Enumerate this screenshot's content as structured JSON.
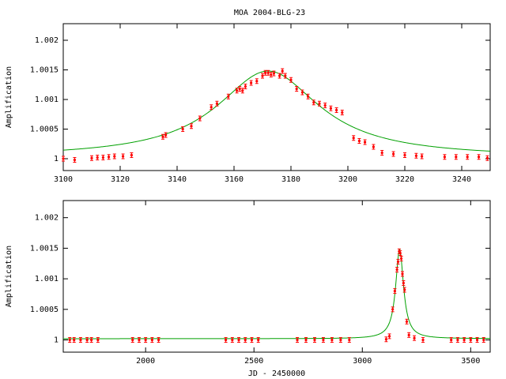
{
  "title": "MOA 2004-BLG-23",
  "colors": {
    "model": "#00a000",
    "points": "#ff0000",
    "axes": "#000000"
  },
  "chart_data": [
    {
      "type": "line",
      "title": "MOA 2004-BLG-23",
      "xlabel": "",
      "ylabel": "Amplification",
      "xlim": [
        3100,
        3250
      ],
      "ylim": [
        0.9998,
        1.00228
      ],
      "xticks": [
        3100,
        3120,
        3140,
        3160,
        3180,
        3200,
        3220,
        3240
      ],
      "yticks": [
        1,
        1.0005,
        1.001,
        1.0015,
        1.002
      ],
      "ytick_labels": [
        "1",
        "1.0005",
        "1.001",
        "1.0015",
        "1.002"
      ],
      "grid": false,
      "model": {
        "name": "",
        "t0": 3172,
        "peak": 1.00148,
        "width": 22,
        "base": 1.00002
      },
      "series": [
        {
          "name": "",
          "points": [
            [
              3100,
              1.0
            ],
            [
              3104,
              0.99998
            ],
            [
              3110,
              1.00001
            ],
            [
              3112,
              1.00002
            ],
            [
              3114,
              1.00002
            ],
            [
              3116,
              1.00003
            ],
            [
              3118,
              1.00004
            ],
            [
              3121,
              1.00004
            ],
            [
              3124,
              1.00006
            ],
            [
              3135,
              1.00037
            ],
            [
              3136,
              1.0004
            ],
            [
              3142,
              1.0005
            ],
            [
              3145,
              1.00055
            ],
            [
              3148,
              1.00068
            ],
            [
              3152,
              1.00087
            ],
            [
              3154,
              1.00093
            ],
            [
              3158,
              1.00105
            ],
            [
              3161,
              1.00115
            ],
            [
              3162,
              1.00118
            ],
            [
              3163,
              1.00115
            ],
            [
              3164,
              1.00122
            ],
            [
              3166,
              1.00128
            ],
            [
              3168,
              1.00131
            ],
            [
              3170,
              1.0014
            ],
            [
              3171,
              1.00145
            ],
            [
              3172,
              1.00145
            ],
            [
              3173,
              1.00142
            ],
            [
              3174,
              1.00144
            ],
            [
              3176,
              1.0014
            ],
            [
              3177,
              1.00148
            ],
            [
              3178,
              1.0014
            ],
            [
              3180,
              1.00133
            ],
            [
              3182,
              1.00118
            ],
            [
              3184,
              1.00112
            ],
            [
              3186,
              1.00105
            ],
            [
              3188,
              1.00095
            ],
            [
              3190,
              1.00093
            ],
            [
              3192,
              1.0009
            ],
            [
              3194,
              1.00085
            ],
            [
              3196,
              1.00082
            ],
            [
              3198,
              1.00078
            ],
            [
              3202,
              1.00035
            ],
            [
              3204,
              1.0003
            ],
            [
              3206,
              1.00028
            ],
            [
              3209,
              1.0002
            ],
            [
              3212,
              1.0001
            ],
            [
              3216,
              1.00008
            ],
            [
              3220,
              1.00006
            ],
            [
              3224,
              1.00005
            ],
            [
              3226,
              1.00004
            ],
            [
              3234,
              1.00003
            ],
            [
              3238,
              1.00003
            ],
            [
              3242,
              1.00003
            ],
            [
              3246,
              1.00003
            ],
            [
              3249,
              1.00001
            ]
          ]
        }
      ]
    },
    {
      "type": "line",
      "title": "",
      "xlabel": "JD - 2450000",
      "ylabel": "Amplification",
      "xlim": [
        1620,
        3590
      ],
      "ylim": [
        0.9998,
        1.00228
      ],
      "xticks": [
        2000,
        2500,
        3000,
        3500
      ],
      "yticks": [
        1,
        1.0005,
        1.001,
        1.0015,
        1.002
      ],
      "ytick_labels": [
        "1",
        "1.0005",
        "1.001",
        "1.0015",
        "1.002"
      ],
      "grid": false,
      "model": {
        "name": "",
        "t0": 3172,
        "peak": 1.00148,
        "width": 22,
        "base": 1.00002
      },
      "series": [
        {
          "name": "",
          "points": [
            [
              1650,
              1.0
            ],
            [
              1670,
              1.0
            ],
            [
              1700,
              1.0
            ],
            [
              1730,
              1.0
            ],
            [
              1750,
              1.0
            ],
            [
              1780,
              1.0
            ],
            [
              1940,
              1.0
            ],
            [
              1970,
              1.0
            ],
            [
              2000,
              1.0
            ],
            [
              2030,
              1.0
            ],
            [
              2060,
              1.0
            ],
            [
              2370,
              1.0
            ],
            [
              2400,
              1.0
            ],
            [
              2430,
              1.0
            ],
            [
              2460,
              1.0
            ],
            [
              2490,
              1.0
            ],
            [
              2520,
              1.0
            ],
            [
              2700,
              1.0
            ],
            [
              2740,
              1.0
            ],
            [
              2780,
              1.0
            ],
            [
              2820,
              1.0
            ],
            [
              2860,
              1.0
            ],
            [
              2900,
              1.0
            ],
            [
              2940,
              1.0
            ],
            [
              3110,
              1.00001
            ],
            [
              3125,
              1.00006
            ],
            [
              3140,
              1.0005
            ],
            [
              3150,
              1.0008
            ],
            [
              3160,
              1.00115
            ],
            [
              3165,
              1.00128
            ],
            [
              3170,
              1.00145
            ],
            [
              3175,
              1.00142
            ],
            [
              3180,
              1.00133
            ],
            [
              3185,
              1.00108
            ],
            [
              3190,
              1.00093
            ],
            [
              3195,
              1.00082
            ],
            [
              3205,
              1.0003
            ],
            [
              3215,
              1.00008
            ],
            [
              3240,
              1.00003
            ],
            [
              3280,
              1.0
            ],
            [
              3410,
              1.0
            ],
            [
              3440,
              1.0
            ],
            [
              3470,
              1.0
            ],
            [
              3500,
              1.0
            ],
            [
              3530,
              1.0
            ],
            [
              3560,
              1.0
            ]
          ]
        }
      ]
    }
  ]
}
